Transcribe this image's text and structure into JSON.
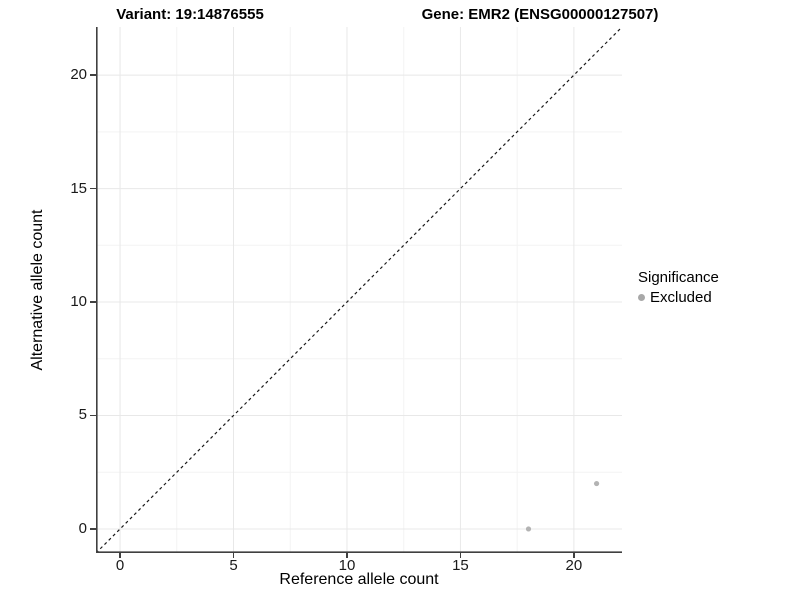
{
  "titles": {
    "left": "Variant: 19:14876555",
    "right": "Gene: EMR2 (ENSG00000127507)"
  },
  "chart_data": {
    "type": "scatter",
    "title_left": "Variant: 19:14876555",
    "title_right": "Gene: EMR2 (ENSG00000127507)",
    "xlabel": "Reference allele count",
    "ylabel": "Alternative allele count",
    "xlim": [
      -1.06,
      22.12
    ],
    "ylim": [
      -1.06,
      22.12
    ],
    "x_ticks": [
      0,
      5,
      10,
      15,
      20
    ],
    "y_ticks": [
      0,
      5,
      10,
      15,
      20
    ],
    "x_minor_ticks": [
      2.5,
      7.5,
      12.5,
      17.5
    ],
    "y_minor_ticks": [
      2.5,
      7.5,
      12.5,
      17.5
    ],
    "grid": true,
    "reference_line": {
      "kind": "identity",
      "style": "dashed",
      "color": "#1a1a1a"
    },
    "series": [
      {
        "name": "Excluded",
        "color": "#b3b3b3",
        "points": [
          [
            18,
            0
          ],
          [
            21,
            2
          ]
        ]
      }
    ],
    "legend": {
      "title": "Significance",
      "position": "right",
      "items": [
        {
          "label": "Excluded",
          "color": "#a8a8a8"
        }
      ]
    },
    "colors": {
      "major_grid": "#e8e8e8",
      "minor_grid": "#f3f3f3",
      "axis_line": "#404040",
      "point": "#b3b3b3"
    }
  }
}
